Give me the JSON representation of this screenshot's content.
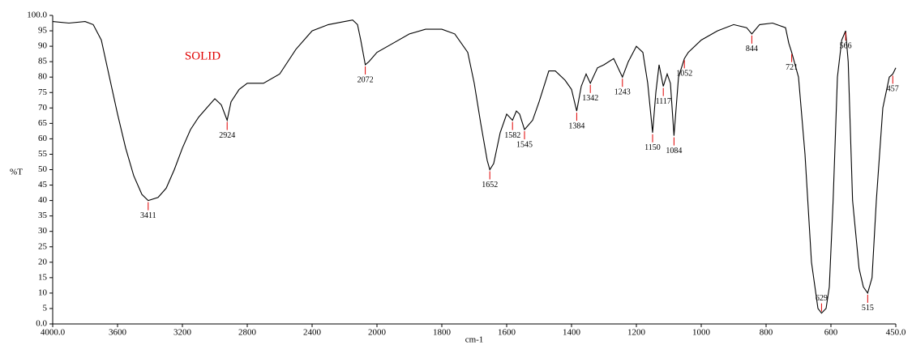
{
  "chart_data": {
    "type": "line",
    "xlabel": "cm-1",
    "ylabel": "%T",
    "annotation": "SOLID",
    "xlim": [
      4000,
      450
    ],
    "xticks": [
      {
        "value": 4000,
        "label": "4000.0"
      },
      3600,
      3200,
      2800,
      2400,
      2000,
      1800,
      1600,
      1400,
      1200,
      1000,
      800,
      600,
      {
        "value": 450,
        "label": "450.0"
      }
    ],
    "ylim": [
      0,
      100
    ],
    "yticks": [
      {
        "value": 0,
        "label": "0.0"
      },
      5,
      10,
      15,
      20,
      25,
      30,
      35,
      40,
      45,
      50,
      55,
      60,
      65,
      70,
      75,
      80,
      85,
      90,
      95,
      {
        "value": 100,
        "label": "100.0"
      }
    ],
    "series": [
      {
        "name": "SOLID",
        "color": "#000000",
        "x": [
          4000,
          3900,
          3800,
          3750,
          3700,
          3650,
          3600,
          3550,
          3500,
          3450,
          3411,
          3350,
          3300,
          3250,
          3200,
          3150,
          3100,
          3050,
          3000,
          2960,
          2924,
          2900,
          2850,
          2800,
          2700,
          2600,
          2500,
          2400,
          2300,
          2200,
          2150,
          2120,
          2100,
          2072,
          2050,
          2000,
          1950,
          1900,
          1850,
          1800,
          1760,
          1720,
          1700,
          1680,
          1660,
          1652,
          1640,
          1620,
          1600,
          1582,
          1570,
          1560,
          1545,
          1520,
          1500,
          1470,
          1450,
          1420,
          1400,
          1384,
          1370,
          1355,
          1342,
          1320,
          1300,
          1270,
          1243,
          1225,
          1200,
          1180,
          1165,
          1150,
          1140,
          1130,
          1117,
          1105,
          1095,
          1084,
          1070,
          1052,
          1040,
          1000,
          950,
          900,
          860,
          844,
          820,
          780,
          740,
          730,
          721,
          700,
          680,
          660,
          640,
          629,
          615,
          605,
          595,
          585,
          575,
          566,
          560,
          550,
          535,
          525,
          515,
          505,
          495,
          480,
          465,
          457,
          450
        ],
        "values": [
          98,
          97.5,
          98,
          97,
          92,
          80,
          68,
          57,
          48,
          42,
          40,
          41,
          44,
          50,
          57,
          63,
          67,
          70,
          73,
          71,
          66,
          72,
          76,
          78,
          78,
          81,
          89,
          95,
          97,
          98,
          98.5,
          97,
          92,
          84,
          85,
          88,
          91,
          94,
          95.5,
          95.5,
          94,
          88,
          78,
          65,
          53,
          50,
          52,
          62,
          68,
          66,
          69,
          68,
          63,
          66,
          72,
          82,
          82,
          79,
          76,
          69,
          77,
          81,
          78,
          83,
          84,
          86,
          80,
          85,
          90,
          88,
          78,
          62,
          75,
          84,
          77,
          81,
          78,
          61,
          80,
          86,
          88,
          92,
          95,
          97,
          96,
          94,
          97,
          97.5,
          96,
          91,
          88,
          80,
          55,
          20,
          5,
          3.5,
          5,
          12,
          40,
          80,
          92,
          95,
          85,
          40,
          18,
          12,
          10,
          15,
          40,
          70,
          80,
          81,
          83
        ]
      }
    ],
    "peaks": [
      {
        "x": 3411,
        "y": 40
      },
      {
        "x": 2924,
        "y": 66
      },
      {
        "x": 2072,
        "y": 84
      },
      {
        "x": 1652,
        "y": 50
      },
      {
        "x": 1582,
        "y": 66
      },
      {
        "x": 1545,
        "y": 63
      },
      {
        "x": 1384,
        "y": 69
      },
      {
        "x": 1342,
        "y": 78
      },
      {
        "x": 1243,
        "y": 80
      },
      {
        "x": 1150,
        "y": 62
      },
      {
        "x": 1117,
        "y": 77
      },
      {
        "x": 1084,
        "y": 61
      },
      {
        "x": 1052,
        "y": 86
      },
      {
        "x": 844,
        "y": 94
      },
      {
        "x": 721,
        "y": 88
      },
      {
        "x": 629,
        "y": 3.5
      },
      {
        "x": 566,
        "y": 95
      },
      {
        "x": 515,
        "y": 10
      },
      {
        "x": 457,
        "y": 81
      }
    ]
  }
}
